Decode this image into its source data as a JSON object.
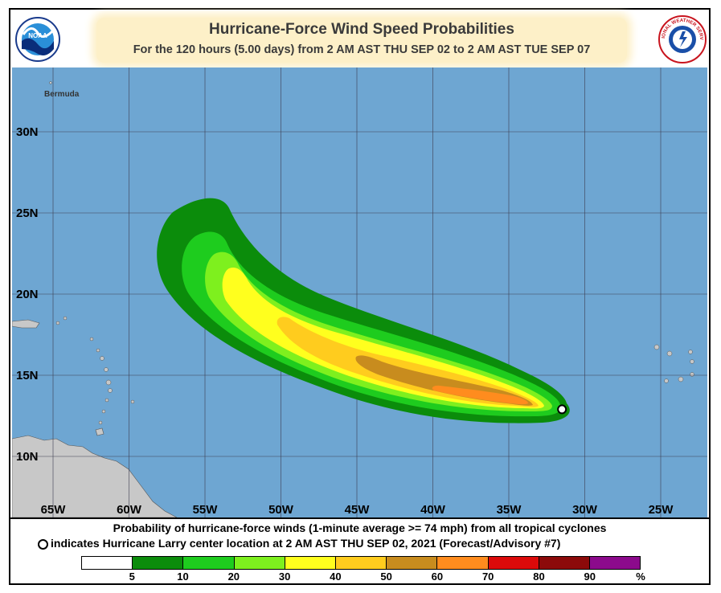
{
  "header": {
    "title": "Hurricane-Force Wind Speed Probabilities",
    "subtitle": "For the 120 hours (5.00 days) from 2 AM AST THU SEP 02 to 2 AM AST TUE SEP 07"
  },
  "logos": {
    "left": {
      "name": "noaa-logo",
      "text": "NOAA"
    },
    "right": {
      "name": "nws-logo",
      "text": "NATIONAL WEATHER SERVICE"
    }
  },
  "map": {
    "ocean_color": "#6ea6d2",
    "land_color": "#c8c8c8",
    "place_labels": [
      {
        "name": "Bermuda",
        "lon": -64.6,
        "lat": 32.3
      }
    ],
    "lat_labels": [
      "30N",
      "25N",
      "20N",
      "15N",
      "10N"
    ],
    "lat_values": [
      30,
      25,
      20,
      15,
      10
    ],
    "lon_labels": [
      "65W",
      "60W",
      "55W",
      "50W",
      "45W",
      "40W",
      "35W",
      "30W",
      "25W"
    ],
    "lon_values": [
      -65,
      -60,
      -55,
      -50,
      -45,
      -40,
      -35,
      -30,
      -25
    ],
    "storm_center": {
      "lon": -31.5,
      "lat": 12.9
    }
  },
  "footer": {
    "caption_line1": "Probability of hurricane-force winds (1-minute average >= 74 mph) from all tropical cyclones",
    "caption_line2": "indicates Hurricane Larry center location at 2 AM AST THU SEP 02, 2021 (Forecast/Advisory #7)"
  },
  "legend": {
    "colors": [
      "#ffffff",
      "#0b8c0b",
      "#1ecc1e",
      "#7ef01e",
      "#ffff1e",
      "#ffcc1e",
      "#c88c1e",
      "#ff8c1e",
      "#dc0a0a",
      "#8c0a0a",
      "#8c0a8c"
    ],
    "labels": [
      "5",
      "10",
      "20",
      "30",
      "40",
      "50",
      "60",
      "70",
      "80",
      "90",
      "%"
    ]
  }
}
